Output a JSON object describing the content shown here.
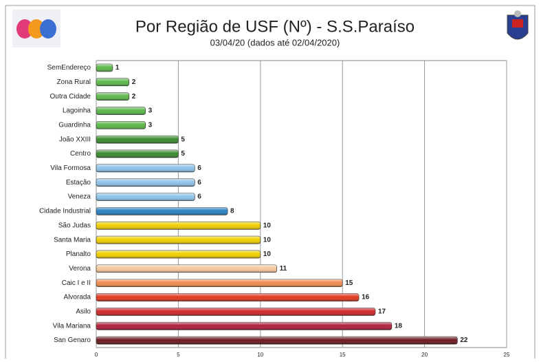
{
  "chart_data": {
    "type": "barh",
    "title": "Por Região de USF (Nº) - S.S.Paraíso",
    "subtitle": "03/04/20 (dados até 02/04/2020)",
    "categories": [
      "SemEndereço",
      "Zona Rural",
      "Outra Cidade",
      "Lagoinha",
      "Guardinha",
      "João XXIII",
      "Centro",
      "Vila Formosa",
      "Estação",
      "Veneza",
      "Cidade Industrial",
      "São Judas",
      "Santa Maria",
      "Planalto",
      "Verona",
      "Caic I e II",
      "Alvorada",
      "Asilo",
      "Vila Mariana",
      "San Genaro"
    ],
    "values": [
      1,
      2,
      2,
      3,
      3,
      5,
      5,
      6,
      6,
      6,
      8,
      10,
      10,
      10,
      11,
      15,
      16,
      17,
      18,
      22
    ],
    "colors": [
      "#5cb84a",
      "#5cb84a",
      "#5cb84a",
      "#5cb84a",
      "#5cb84a",
      "#3a8a2e",
      "#3a8a2e",
      "#8ec3ea",
      "#8ec3ea",
      "#8ec3ea",
      "#2a7fc0",
      "#f0d000",
      "#f0d000",
      "#f0d000",
      "#f5c89a",
      "#f08a50",
      "#e03a20",
      "#d02828",
      "#b0203a",
      "#6a1a20"
    ],
    "xlim": [
      0,
      25
    ],
    "xticks": [
      0,
      5,
      10,
      15,
      20,
      25
    ],
    "grid": true
  }
}
